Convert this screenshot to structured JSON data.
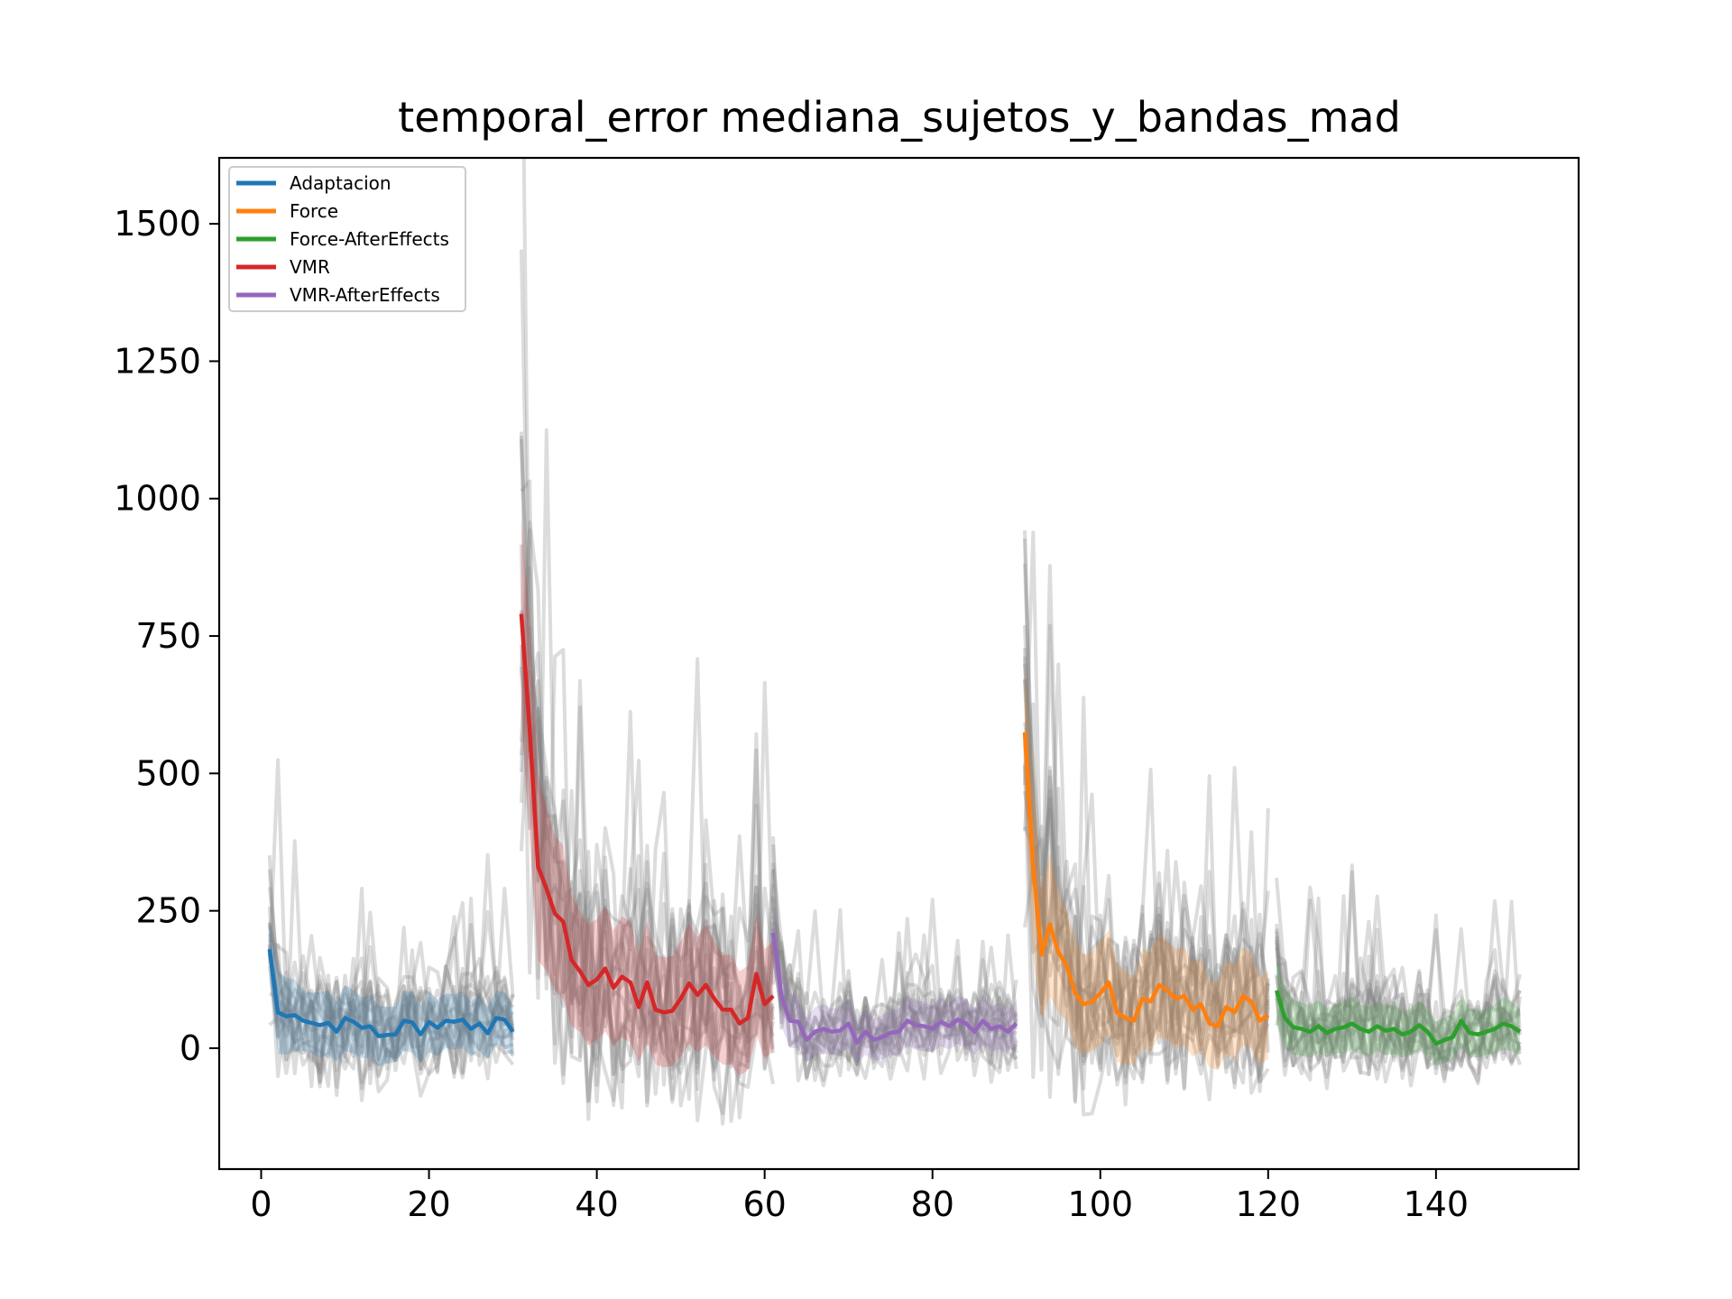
{
  "chart_data": {
    "type": "line",
    "title": "temporal_error mediana_sujetos_y_bandas_mad",
    "xlabel": "",
    "ylabel": "",
    "xlim": [
      -5,
      157
    ],
    "ylim": [
      -220,
      1620
    ],
    "xticks": [
      0,
      20,
      40,
      60,
      80,
      100,
      120,
      140
    ],
    "yticks": [
      0,
      250,
      500,
      750,
      1000,
      1250,
      1500
    ],
    "grid": false,
    "legend_position": "top-left",
    "background_traces_color": "#808080",
    "series": [
      {
        "name": "Adaptacion",
        "color": "#1f77b4",
        "x_start": 1,
        "values": [
          180,
          65,
          58,
          60,
          50,
          46,
          42,
          46,
          30,
          55,
          48,
          37,
          40,
          22,
          24,
          25,
          50,
          47,
          25,
          48,
          37,
          50,
          48,
          52,
          35,
          45,
          27,
          55,
          52,
          30
        ],
        "band": [
          60,
          75,
          70,
          65,
          55,
          55,
          60,
          58,
          55,
          60,
          58,
          55,
          58,
          55,
          52,
          50,
          55,
          55,
          52,
          55,
          52,
          50,
          50,
          52,
          50,
          50,
          48,
          50,
          50,
          48
        ]
      },
      {
        "name": "Force",
        "color": "#ff7f0e",
        "x_start": 91,
        "values": [
          575,
          330,
          170,
          225,
          175,
          150,
          100,
          80,
          85,
          100,
          120,
          65,
          55,
          50,
          90,
          85,
          115,
          105,
          90,
          95,
          70,
          80,
          45,
          40,
          75,
          65,
          95,
          85,
          50,
          60
        ],
        "band": [
          120,
          160,
          120,
          130,
          110,
          100,
          100,
          90,
          90,
          95,
          95,
          90,
          85,
          80,
          90,
          90,
          95,
          90,
          90,
          90,
          85,
          85,
          80,
          80,
          85,
          85,
          90,
          85,
          80,
          80
        ]
      },
      {
        "name": "Force-AfterEffects",
        "color": "#2ca02c",
        "x_start": 121,
        "values": [
          105,
          55,
          38,
          35,
          30,
          40,
          28,
          35,
          38,
          45,
          35,
          30,
          40,
          32,
          35,
          25,
          30,
          42,
          30,
          8,
          15,
          20,
          50,
          28,
          25,
          30,
          35,
          45,
          40,
          30
        ],
        "band": [
          60,
          55,
          50,
          48,
          48,
          48,
          45,
          45,
          48,
          48,
          45,
          45,
          45,
          45,
          45,
          42,
          42,
          45,
          45,
          40,
          42,
          42,
          48,
          45,
          42,
          42,
          45,
          48,
          45,
          42
        ]
      },
      {
        "name": "VMR",
        "color": "#d62728",
        "x_start": 31,
        "values": [
          790,
          580,
          330,
          290,
          245,
          230,
          160,
          140,
          115,
          125,
          145,
          110,
          130,
          120,
          75,
          120,
          70,
          65,
          68,
          90,
          118,
          97,
          115,
          90,
          70,
          70,
          45,
          55,
          135,
          80,
          95
        ],
        "band": [
          180,
          200,
          170,
          150,
          140,
          140,
          120,
          110,
          110,
          110,
          115,
          105,
          110,
          110,
          100,
          110,
          100,
          100,
          100,
          105,
          110,
          105,
          110,
          105,
          100,
          100,
          95,
          95,
          110,
          100,
          100
        ]
      },
      {
        "name": "VMR-AfterEffects",
        "color": "#9467bd",
        "x_start": 61,
        "values": [
          210,
          95,
          50,
          48,
          15,
          30,
          35,
          30,
          32,
          45,
          10,
          30,
          15,
          20,
          28,
          30,
          50,
          42,
          40,
          35,
          48,
          40,
          52,
          45,
          30,
          50,
          35,
          40,
          30,
          45
        ],
        "band": [
          60,
          55,
          50,
          48,
          40,
          45,
          45,
          42,
          42,
          45,
          38,
          42,
          38,
          40,
          42,
          42,
          45,
          45,
          45,
          42,
          45,
          42,
          45,
          45,
          42,
          45,
          42,
          42,
          40,
          42
        ]
      }
    ]
  }
}
